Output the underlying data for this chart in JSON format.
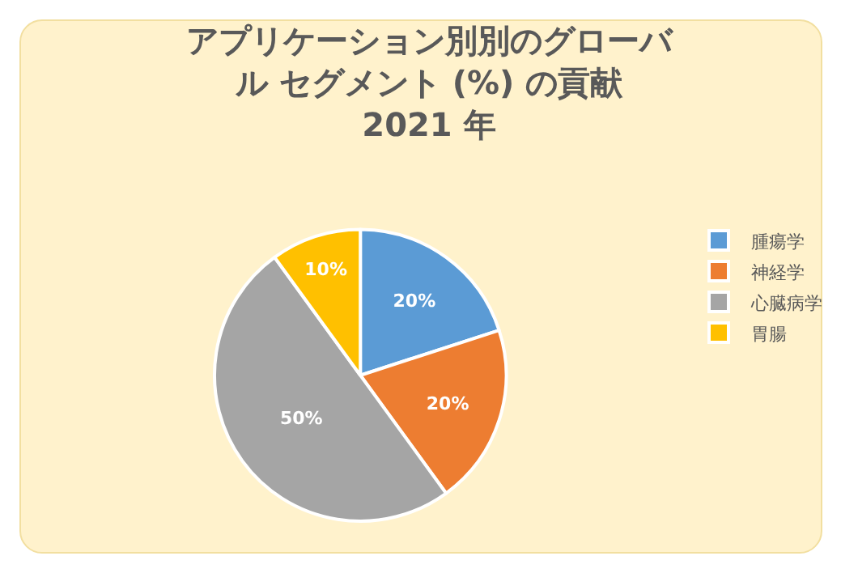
{
  "chart_data": {
    "type": "pie",
    "title": "アプリケーション別別のグローバル セグメント (%) の貢献2021 年",
    "categories": [
      "腫瘍学",
      "神経学",
      "心臓病学",
      "胃腸"
    ],
    "values": [
      20,
      20,
      50,
      10
    ],
    "colors": [
      "#5b9bd5",
      "#ed7d31",
      "#a5a5a5",
      "#ffc000"
    ],
    "value_labels": [
      "20%",
      "20%",
      "50%",
      "10%"
    ],
    "legend": "right"
  }
}
